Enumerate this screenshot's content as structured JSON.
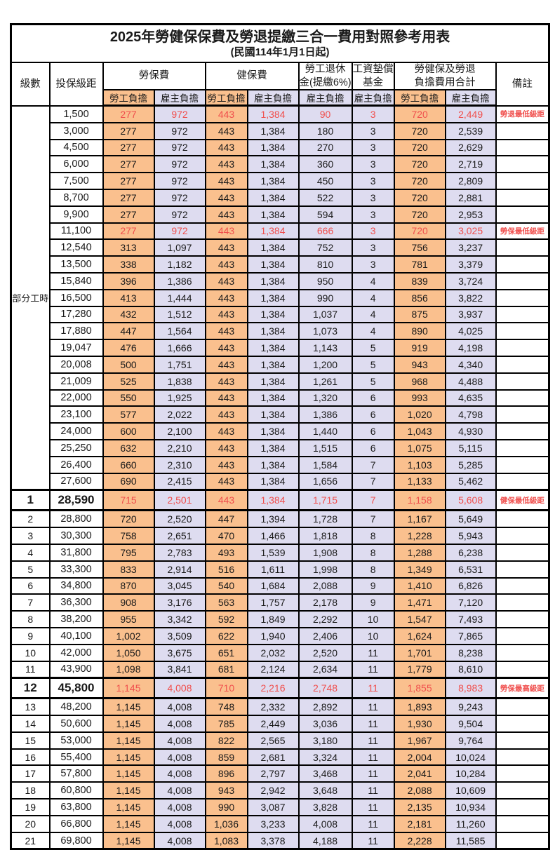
{
  "title": "2025年勞健保保費及勞退提繳三合一費用對照參考用表",
  "subtitle": "(民國114年1月1日起)",
  "colors": {
    "employee_bg": "#FAC08E",
    "employer_bg": "#DEDCF0",
    "highlight_text": "#F04F4D",
    "border": "#000000"
  },
  "header": {
    "level": "級數",
    "bracket": "投保級距",
    "labor_insurance": "勞保費",
    "health_insurance": "健保費",
    "pension_line1": "勞工退休",
    "pension_line2": "金(提繳6%)",
    "wage_fund_line1": "工資墊償",
    "wage_fund_line2": "基金",
    "total_line1": "勞健保及勞退",
    "total_line2": "負擔費用合計",
    "remark": "備註",
    "employee": "勞工負擔",
    "employer": "雇主負擔"
  },
  "table": {
    "part_time": {
      "label": "部分工時",
      "rowspan": 23
    },
    "rows": [
      {
        "amt": "1,500",
        "v": [
          "277",
          "972",
          "443",
          "1,384",
          "90",
          "3",
          "720",
          "2,449"
        ],
        "rm": "勞退最低級距",
        "hl": true
      },
      {
        "amt": "3,000",
        "v": [
          "277",
          "972",
          "443",
          "1,384",
          "180",
          "3",
          "720",
          "2,539"
        ]
      },
      {
        "amt": "4,500",
        "v": [
          "277",
          "972",
          "443",
          "1,384",
          "270",
          "3",
          "720",
          "2,629"
        ]
      },
      {
        "amt": "6,000",
        "v": [
          "277",
          "972",
          "443",
          "1,384",
          "360",
          "3",
          "720",
          "2,719"
        ]
      },
      {
        "amt": "7,500",
        "v": [
          "277",
          "972",
          "443",
          "1,384",
          "450",
          "3",
          "720",
          "2,809"
        ]
      },
      {
        "amt": "8,700",
        "v": [
          "277",
          "972",
          "443",
          "1,384",
          "522",
          "3",
          "720",
          "2,881"
        ]
      },
      {
        "amt": "9,900",
        "v": [
          "277",
          "972",
          "443",
          "1,384",
          "594",
          "3",
          "720",
          "2,953"
        ]
      },
      {
        "amt": "11,100",
        "v": [
          "277",
          "972",
          "443",
          "1,384",
          "666",
          "3",
          "720",
          "3,025"
        ],
        "rm": "勞保最低級距",
        "hl": true
      },
      {
        "amt": "12,540",
        "v": [
          "313",
          "1,097",
          "443",
          "1,384",
          "752",
          "3",
          "756",
          "3,237"
        ]
      },
      {
        "amt": "13,500",
        "v": [
          "338",
          "1,182",
          "443",
          "1,384",
          "810",
          "3",
          "781",
          "3,379"
        ]
      },
      {
        "amt": "15,840",
        "v": [
          "396",
          "1,386",
          "443",
          "1,384",
          "950",
          "4",
          "839",
          "3,724"
        ]
      },
      {
        "amt": "16,500",
        "v": [
          "413",
          "1,444",
          "443",
          "1,384",
          "990",
          "4",
          "856",
          "3,822"
        ]
      },
      {
        "amt": "17,280",
        "v": [
          "432",
          "1,512",
          "443",
          "1,384",
          "1,037",
          "4",
          "875",
          "3,937"
        ]
      },
      {
        "amt": "17,880",
        "v": [
          "447",
          "1,564",
          "443",
          "1,384",
          "1,073",
          "4",
          "890",
          "4,025"
        ]
      },
      {
        "amt": "19,047",
        "v": [
          "476",
          "1,666",
          "443",
          "1,384",
          "1,143",
          "5",
          "919",
          "4,198"
        ]
      },
      {
        "amt": "20,008",
        "v": [
          "500",
          "1,751",
          "443",
          "1,384",
          "1,200",
          "5",
          "943",
          "4,340"
        ]
      },
      {
        "amt": "21,009",
        "v": [
          "525",
          "1,838",
          "443",
          "1,384",
          "1,261",
          "5",
          "968",
          "4,488"
        ]
      },
      {
        "amt": "22,000",
        "v": [
          "550",
          "1,925",
          "443",
          "1,384",
          "1,320",
          "6",
          "993",
          "4,635"
        ]
      },
      {
        "amt": "23,100",
        "v": [
          "577",
          "2,022",
          "443",
          "1,384",
          "1,386",
          "6",
          "1,020",
          "4,798"
        ]
      },
      {
        "amt": "24,000",
        "v": [
          "600",
          "2,100",
          "443",
          "1,384",
          "1,440",
          "6",
          "1,043",
          "4,930"
        ]
      },
      {
        "amt": "25,250",
        "v": [
          "632",
          "2,210",
          "443",
          "1,384",
          "1,515",
          "6",
          "1,075",
          "5,115"
        ]
      },
      {
        "amt": "26,400",
        "v": [
          "660",
          "2,310",
          "443",
          "1,384",
          "1,584",
          "7",
          "1,103",
          "5,285"
        ]
      },
      {
        "amt": "27,600",
        "v": [
          "690",
          "2,415",
          "443",
          "1,384",
          "1,656",
          "7",
          "1,133",
          "5,462"
        ]
      },
      {
        "lv": "1",
        "amt": "28,590",
        "v": [
          "715",
          "2,501",
          "443",
          "1,384",
          "1,715",
          "7",
          "1,158",
          "5,608"
        ],
        "rm": "健保最低級距",
        "hl": true,
        "mj": true
      },
      {
        "lv": "2",
        "amt": "28,800",
        "v": [
          "720",
          "2,520",
          "447",
          "1,394",
          "1,728",
          "7",
          "1,167",
          "5,649"
        ]
      },
      {
        "lv": "3",
        "amt": "30,300",
        "v": [
          "758",
          "2,651",
          "470",
          "1,466",
          "1,818",
          "8",
          "1,228",
          "5,943"
        ]
      },
      {
        "lv": "4",
        "amt": "31,800",
        "v": [
          "795",
          "2,783",
          "493",
          "1,539",
          "1,908",
          "8",
          "1,288",
          "6,238"
        ]
      },
      {
        "lv": "5",
        "amt": "33,300",
        "v": [
          "833",
          "2,914",
          "516",
          "1,611",
          "1,998",
          "8",
          "1,349",
          "6,531"
        ]
      },
      {
        "lv": "6",
        "amt": "34,800",
        "v": [
          "870",
          "3,045",
          "540",
          "1,684",
          "2,088",
          "9",
          "1,410",
          "6,826"
        ]
      },
      {
        "lv": "7",
        "amt": "36,300",
        "v": [
          "908",
          "3,176",
          "563",
          "1,757",
          "2,178",
          "9",
          "1,471",
          "7,120"
        ]
      },
      {
        "lv": "8",
        "amt": "38,200",
        "v": [
          "955",
          "3,342",
          "592",
          "1,849",
          "2,292",
          "10",
          "1,547",
          "7,493"
        ]
      },
      {
        "lv": "9",
        "amt": "40,100",
        "v": [
          "1,002",
          "3,509",
          "622",
          "1,940",
          "2,406",
          "10",
          "1,624",
          "7,865"
        ]
      },
      {
        "lv": "10",
        "amt": "42,000",
        "v": [
          "1,050",
          "3,675",
          "651",
          "2,032",
          "2,520",
          "11",
          "1,701",
          "8,238"
        ]
      },
      {
        "lv": "11",
        "amt": "43,900",
        "v": [
          "1,098",
          "3,841",
          "681",
          "2,124",
          "2,634",
          "11",
          "1,779",
          "8,610"
        ]
      },
      {
        "lv": "12",
        "amt": "45,800",
        "v": [
          "1,145",
          "4,008",
          "710",
          "2,216",
          "2,748",
          "11",
          "1,855",
          "8,983"
        ],
        "rm": "勞保最高級距",
        "hl": true,
        "mj": true
      },
      {
        "lv": "13",
        "amt": "48,200",
        "v": [
          "1,145",
          "4,008",
          "748",
          "2,332",
          "2,892",
          "11",
          "1,893",
          "9,243"
        ]
      },
      {
        "lv": "14",
        "amt": "50,600",
        "v": [
          "1,145",
          "4,008",
          "785",
          "2,449",
          "3,036",
          "11",
          "1,930",
          "9,504"
        ]
      },
      {
        "lv": "15",
        "amt": "53,000",
        "v": [
          "1,145",
          "4,008",
          "822",
          "2,565",
          "3,180",
          "11",
          "1,967",
          "9,764"
        ]
      },
      {
        "lv": "16",
        "amt": "55,400",
        "v": [
          "1,145",
          "4,008",
          "859",
          "2,681",
          "3,324",
          "11",
          "2,004",
          "10,024"
        ]
      },
      {
        "lv": "17",
        "amt": "57,800",
        "v": [
          "1,145",
          "4,008",
          "896",
          "2,797",
          "3,468",
          "11",
          "2,041",
          "10,284"
        ]
      },
      {
        "lv": "18",
        "amt": "60,800",
        "v": [
          "1,145",
          "4,008",
          "943",
          "2,942",
          "3,648",
          "11",
          "2,088",
          "10,609"
        ]
      },
      {
        "lv": "19",
        "amt": "63,800",
        "v": [
          "1,145",
          "4,008",
          "990",
          "3,087",
          "3,828",
          "11",
          "2,135",
          "10,934"
        ]
      },
      {
        "lv": "20",
        "amt": "66,800",
        "v": [
          "1,145",
          "4,008",
          "1,036",
          "3,233",
          "4,008",
          "11",
          "2,181",
          "11,260"
        ]
      },
      {
        "lv": "21",
        "amt": "69,800",
        "v": [
          "1,145",
          "4,008",
          "1,083",
          "3,378",
          "4,188",
          "11",
          "2,228",
          "11,585"
        ]
      }
    ]
  }
}
